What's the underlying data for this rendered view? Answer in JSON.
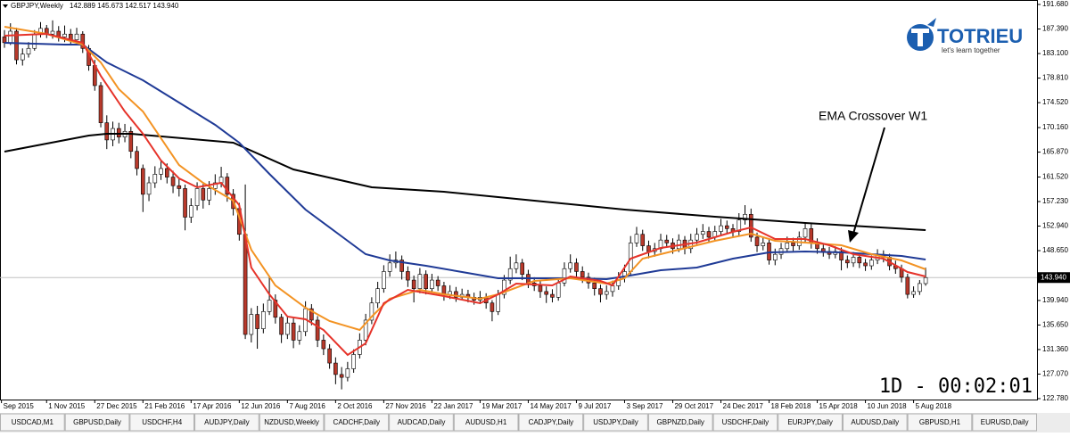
{
  "chart_data": {
    "type": "candlestick",
    "title": "GBPJPY,Weekly",
    "subtitle": "142.889 145.673 142.517 143.940",
    "up_color": "#ffffff",
    "down_color": "#b8392b",
    "wick_color": "#000000",
    "candles": [
      [
        186.0,
        187.2,
        184.1,
        185.0
      ],
      [
        185.0,
        188.4,
        184.6,
        187.0
      ],
      [
        187.0,
        187.6,
        181.2,
        182.0
      ],
      [
        182.0,
        184.0,
        181.0,
        183.0
      ],
      [
        183.0,
        185.1,
        182.4,
        184.0
      ],
      [
        184.0,
        187.2,
        183.6,
        186.5
      ],
      [
        186.5,
        188.6,
        185.9,
        187.5
      ],
      [
        187.5,
        188.1,
        185.8,
        186.5
      ],
      [
        186.5,
        188.9,
        185.7,
        187.0
      ],
      [
        187.0,
        187.9,
        185.2,
        186.0
      ],
      [
        186.0,
        188.0,
        185.1,
        186.5
      ],
      [
        186.5,
        187.4,
        184.6,
        185.5
      ],
      [
        185.5,
        187.6,
        184.9,
        186.5
      ],
      [
        186.5,
        187.0,
        183.2,
        184.0
      ],
      [
        184.0,
        184.6,
        180.1,
        181.0
      ],
      [
        181.0,
        182.0,
        176.6,
        177.5
      ],
      [
        177.5,
        178.1,
        170.2,
        171.0
      ],
      [
        171.0,
        172.3,
        166.4,
        168.0
      ],
      [
        168.0,
        171.2,
        166.9,
        170.0
      ],
      [
        170.0,
        171.0,
        167.4,
        168.5
      ],
      [
        168.5,
        170.8,
        167.6,
        169.5
      ],
      [
        169.5,
        170.3,
        164.8,
        166.0
      ],
      [
        166.0,
        166.9,
        161.8,
        163.0
      ],
      [
        163.0,
        163.7,
        155.4,
        158.5
      ],
      [
        158.5,
        161.6,
        157.3,
        160.5
      ],
      [
        160.5,
        163.4,
        159.6,
        162.0
      ],
      [
        162.0,
        164.5,
        161.0,
        163.0
      ],
      [
        163.0,
        163.9,
        160.4,
        161.5
      ],
      [
        161.5,
        162.6,
        158.7,
        160.0
      ],
      [
        160.0,
        161.2,
        158.1,
        159.5
      ],
      [
        159.5,
        160.2,
        152.2,
        154.5
      ],
      [
        154.5,
        157.8,
        153.5,
        156.5
      ],
      [
        156.5,
        160.6,
        155.7,
        159.5
      ],
      [
        159.5,
        160.3,
        156.0,
        157.5
      ],
      [
        157.5,
        160.8,
        156.6,
        159.5
      ],
      [
        159.5,
        162.0,
        158.4,
        160.5
      ],
      [
        160.5,
        163.3,
        159.7,
        161.5
      ],
      [
        161.5,
        162.2,
        157.2,
        158.5
      ],
      [
        158.5,
        159.4,
        154.8,
        156.0
      ],
      [
        156.0,
        157.0,
        150.4,
        151.5
      ],
      [
        151.5,
        160.2,
        133.2,
        134.0
      ],
      [
        134.0,
        138.6,
        132.6,
        137.5
      ],
      [
        137.5,
        139.0,
        131.5,
        135.0
      ],
      [
        135.0,
        139.4,
        134.2,
        138.0
      ],
      [
        138.0,
        144.3,
        137.4,
        140.0
      ],
      [
        140.0,
        141.0,
        135.9,
        137.0
      ],
      [
        137.0,
        137.6,
        132.5,
        134.0
      ],
      [
        134.0,
        137.1,
        133.2,
        136.0
      ],
      [
        136.0,
        136.8,
        131.6,
        133.0
      ],
      [
        133.0,
        135.6,
        132.2,
        134.5
      ],
      [
        134.5,
        139.8,
        133.7,
        138.5
      ],
      [
        138.5,
        139.3,
        135.6,
        136.5
      ],
      [
        136.5,
        137.2,
        131.8,
        133.0
      ],
      [
        133.0,
        134.0,
        130.4,
        131.5
      ],
      [
        131.5,
        132.3,
        128.0,
        129.0
      ],
      [
        129.0,
        130.0,
        125.3,
        127.0
      ],
      [
        127.0,
        128.3,
        124.4,
        126.5
      ],
      [
        126.5,
        129.2,
        125.8,
        128.0
      ],
      [
        128.0,
        131.4,
        127.3,
        130.5
      ],
      [
        130.5,
        134.2,
        129.8,
        133.0
      ],
      [
        133.0,
        137.6,
        132.1,
        136.5
      ],
      [
        136.5,
        140.5,
        135.8,
        139.5
      ],
      [
        139.5,
        143.2,
        138.6,
        142.0
      ],
      [
        142.0,
        146.1,
        141.3,
        145.0
      ],
      [
        145.0,
        148.0,
        144.1,
        146.5
      ],
      [
        146.5,
        148.5,
        145.6,
        147.0
      ],
      [
        147.0,
        147.8,
        143.6,
        145.0
      ],
      [
        145.0,
        145.9,
        142.3,
        143.5
      ],
      [
        143.5,
        144.3,
        139.6,
        142.0
      ],
      [
        142.0,
        145.6,
        141.2,
        144.5
      ],
      [
        144.5,
        145.2,
        141.0,
        142.0
      ],
      [
        142.0,
        144.6,
        141.4,
        143.5
      ],
      [
        143.5,
        144.2,
        141.6,
        142.5
      ],
      [
        142.5,
        143.2,
        139.9,
        141.0
      ],
      [
        141.0,
        142.6,
        140.2,
        141.5
      ],
      [
        141.5,
        142.3,
        139.7,
        140.5
      ],
      [
        140.5,
        142.0,
        140.0,
        141.0
      ],
      [
        141.0,
        141.8,
        139.6,
        140.5
      ],
      [
        140.5,
        141.3,
        139.2,
        140.0
      ],
      [
        140.0,
        141.6,
        139.3,
        140.5
      ],
      [
        140.5,
        141.2,
        138.5,
        139.5
      ],
      [
        139.5,
        140.0,
        136.3,
        138.0
      ],
      [
        138.0,
        141.8,
        137.4,
        141.0
      ],
      [
        141.0,
        144.4,
        140.3,
        143.5
      ],
      [
        143.5,
        147.6,
        142.8,
        145.5
      ],
      [
        145.5,
        148.0,
        144.7,
        146.5
      ],
      [
        146.5,
        147.2,
        143.5,
        144.5
      ],
      [
        144.5,
        145.3,
        142.1,
        143.0
      ],
      [
        143.0,
        144.0,
        141.6,
        142.5
      ],
      [
        142.5,
        143.3,
        140.4,
        141.5
      ],
      [
        141.5,
        142.4,
        139.5,
        141.0
      ],
      [
        141.0,
        141.9,
        139.6,
        140.5
      ],
      [
        140.5,
        143.9,
        139.9,
        143.0
      ],
      [
        143.0,
        146.6,
        142.4,
        145.5
      ],
      [
        145.5,
        148.0,
        144.8,
        146.5
      ],
      [
        146.5,
        147.3,
        144.1,
        145.0
      ],
      [
        145.0,
        145.9,
        143.0,
        144.0
      ],
      [
        144.0,
        144.8,
        142.0,
        143.0
      ],
      [
        143.0,
        143.9,
        140.8,
        142.0
      ],
      [
        142.0,
        142.7,
        139.6,
        141.0
      ],
      [
        141.0,
        142.6,
        140.1,
        141.5
      ],
      [
        141.5,
        143.4,
        140.6,
        142.5
      ],
      [
        142.5,
        144.9,
        141.8,
        144.0
      ],
      [
        144.0,
        146.2,
        143.1,
        145.0
      ],
      [
        145.0,
        151.2,
        144.2,
        150.0
      ],
      [
        150.0,
        152.8,
        149.3,
        151.5
      ],
      [
        151.5,
        152.3,
        148.6,
        149.5
      ],
      [
        149.5,
        150.4,
        147.3,
        148.5
      ],
      [
        148.5,
        150.0,
        147.6,
        149.0
      ],
      [
        149.0,
        151.6,
        148.3,
        150.5
      ],
      [
        150.5,
        151.4,
        149.2,
        150.0
      ],
      [
        150.0,
        150.8,
        148.1,
        149.0
      ],
      [
        149.0,
        151.5,
        148.4,
        150.5
      ],
      [
        150.5,
        151.2,
        148.0,
        149.0
      ],
      [
        149.0,
        151.6,
        148.2,
        150.5
      ],
      [
        150.5,
        152.6,
        149.8,
        151.5
      ],
      [
        151.5,
        153.3,
        150.7,
        152.0
      ],
      [
        152.0,
        152.8,
        150.2,
        151.0
      ],
      [
        151.0,
        153.0,
        150.3,
        152.0
      ],
      [
        152.0,
        154.2,
        151.2,
        153.0
      ],
      [
        153.0,
        153.9,
        151.6,
        152.5
      ],
      [
        152.5,
        153.3,
        150.9,
        152.0
      ],
      [
        152.0,
        155.2,
        151.3,
        154.0
      ],
      [
        154.0,
        156.6,
        153.2,
        155.0
      ],
      [
        155.0,
        156.0,
        150.2,
        151.0
      ],
      [
        151.0,
        151.8,
        148.4,
        149.5
      ],
      [
        149.5,
        151.0,
        148.7,
        150.0
      ],
      [
        150.0,
        150.6,
        146.2,
        147.0
      ],
      [
        147.0,
        149.0,
        146.1,
        148.0
      ],
      [
        148.0,
        150.0,
        147.2,
        149.0
      ],
      [
        149.0,
        151.1,
        148.3,
        150.0
      ],
      [
        150.0,
        150.9,
        148.6,
        149.5
      ],
      [
        149.5,
        152.0,
        148.8,
        151.0
      ],
      [
        151.0,
        153.6,
        150.2,
        152.5
      ],
      [
        152.5,
        153.3,
        149.0,
        150.0
      ],
      [
        150.0,
        150.8,
        148.1,
        149.0
      ],
      [
        149.0,
        149.9,
        147.6,
        148.5
      ],
      [
        148.5,
        149.3,
        147.2,
        148.0
      ],
      [
        148.0,
        149.4,
        147.3,
        148.5
      ],
      [
        148.5,
        149.2,
        145.2,
        147.0
      ],
      [
        147.0,
        147.8,
        145.6,
        146.5
      ],
      [
        146.5,
        148.4,
        145.8,
        147.5
      ],
      [
        147.5,
        148.2,
        145.6,
        146.5
      ],
      [
        146.5,
        147.2,
        145.1,
        146.0
      ],
      [
        146.0,
        147.8,
        145.3,
        147.0
      ],
      [
        147.0,
        148.9,
        146.3,
        148.0
      ],
      [
        148.0,
        148.7,
        146.6,
        147.5
      ],
      [
        147.5,
        148.1,
        145.2,
        146.0
      ],
      [
        146.0,
        146.9,
        144.6,
        145.5
      ],
      [
        145.5,
        146.2,
        143.1,
        144.0
      ],
      [
        144.0,
        144.6,
        140.3,
        141.0
      ],
      [
        141.0,
        142.4,
        140.4,
        141.5
      ],
      [
        141.5,
        143.5,
        140.9,
        142.9
      ],
      [
        142.889,
        145.673,
        142.517,
        143.94
      ]
    ],
    "lines": [
      {
        "color": "#000000",
        "x": [
          0,
          14,
          17,
          21,
          38,
          48,
          61,
          73,
          88,
          103,
          118,
          133,
          153
        ],
        "values": [
          165.96,
          168.77,
          169.08,
          169.08,
          167.52,
          162.84,
          159.72,
          158.94,
          157.39,
          155.83,
          154.58,
          153.49,
          152.24
        ]
      },
      {
        "color": "#1f3a96",
        "x": [
          0,
          10,
          13,
          17,
          23,
          29,
          35,
          39,
          44,
          50,
          56,
          60,
          64,
          70,
          76,
          82,
          88,
          94,
          100,
          103,
          109,
          115,
          121,
          127,
          133,
          139,
          144,
          149,
          153
        ],
        "values": [
          184.98,
          184.67,
          184.67,
          181.55,
          178.43,
          174.53,
          170.64,
          167.52,
          162.06,
          155.83,
          151.15,
          148.03,
          146.94,
          146.01,
          144.91,
          143.82,
          143.82,
          143.82,
          143.67,
          144.14,
          145.23,
          145.69,
          147.25,
          148.34,
          148.5,
          148.34,
          148.03,
          147.72,
          147.1
        ]
      },
      {
        "color": "#f39323",
        "x": [
          0,
          7,
          13,
          16,
          19,
          23,
          29,
          33,
          38,
          41,
          45,
          50,
          54,
          59,
          61,
          64,
          69,
          73,
          79,
          82,
          88,
          94,
          100,
          103,
          106,
          112,
          118,
          124,
          128,
          133,
          139,
          144,
          149,
          153
        ],
        "values": [
          187.78,
          186.54,
          184.67,
          181.55,
          176.87,
          172.97,
          163.62,
          160.5,
          157.39,
          148.81,
          142.58,
          138.68,
          136.34,
          134.78,
          137.12,
          140.24,
          141.8,
          141.02,
          140.24,
          141.02,
          143.36,
          143.82,
          142.89,
          143.82,
          147.25,
          148.81,
          150.37,
          151.62,
          150.37,
          150.06,
          149.59,
          148.03,
          146.94,
          145.38
        ]
      },
      {
        "color": "#e6332a",
        "x": [
          0,
          7,
          13,
          16,
          20,
          23,
          26,
          29,
          32,
          36,
          39,
          41,
          44,
          47,
          50,
          53,
          57,
          60,
          63,
          67,
          73,
          79,
          82,
          85,
          91,
          94,
          99,
          101,
          104,
          109,
          115,
          121,
          124,
          128,
          133,
          137,
          141,
          146,
          150,
          153
        ],
        "values": [
          186.22,
          186.54,
          184.98,
          179.21,
          172.97,
          169.08,
          164.4,
          161.28,
          159.72,
          160.5,
          156.61,
          145.69,
          141.02,
          137.12,
          136.65,
          134.78,
          130.42,
          132.44,
          139.46,
          141.8,
          140.71,
          139.46,
          141.02,
          142.89,
          142.58,
          144.14,
          143.36,
          142.58,
          147.25,
          149.12,
          150.06,
          151.93,
          152.71,
          150.68,
          150.68,
          149.59,
          148.03,
          147.25,
          144.91,
          144.14
        ]
      }
    ],
    "xlim": [
      -0.74,
      171.5
    ],
    "ylim": [
      122.62,
      192.46
    ],
    "yticks": [
      {
        "value": 191.68,
        "label": "191.680"
      },
      {
        "value": 187.39,
        "label": "187.390"
      },
      {
        "value": 183.1,
        "label": "183.100"
      },
      {
        "value": 178.81,
        "label": "178.810"
      },
      {
        "value": 174.52,
        "label": "174.520"
      },
      {
        "value": 170.16,
        "label": "170.160"
      },
      {
        "value": 165.87,
        "label": "165.870"
      },
      {
        "value": 161.52,
        "label": "161.520"
      },
      {
        "value": 157.23,
        "label": "157.230"
      },
      {
        "value": 152.94,
        "label": "152.940"
      },
      {
        "value": 148.65,
        "label": "148.650"
      },
      {
        "value": 139.94,
        "label": "139.940"
      },
      {
        "value": 135.65,
        "label": "135.650"
      },
      {
        "value": 131.36,
        "label": "131.360"
      },
      {
        "value": 127.07,
        "label": "127.070"
      },
      {
        "value": 122.78,
        "label": "122.780"
      }
    ],
    "price_line": {
      "value": 143.94,
      "label": "143.940"
    },
    "xticks": [
      {
        "value": -0.5,
        "label": "Sep 2015"
      },
      {
        "value": 7,
        "label": "1 Nov 2015"
      },
      {
        "value": 15,
        "label": "27 Dec 2015"
      },
      {
        "value": 23,
        "label": "21 Feb 2016"
      },
      {
        "value": 31,
        "label": "17 Apr 2016"
      },
      {
        "value": 39,
        "label": "12 Jun 2016"
      },
      {
        "value": 47,
        "label": "7 Aug 2016"
      },
      {
        "value": 55,
        "label": "2 Oct 2016"
      },
      {
        "value": 63,
        "label": "27 Nov 2016"
      },
      {
        "value": 71,
        "label": "22 Jan 2017"
      },
      {
        "value": 79,
        "label": "19 Mar 2017"
      },
      {
        "value": 87,
        "label": "14 May 2017"
      },
      {
        "value": 95,
        "label": "9 Jul 2017"
      },
      {
        "value": 103,
        "label": "3 Sep 2017"
      },
      {
        "value": 111,
        "label": "29 Oct 2017"
      },
      {
        "value": 119,
        "label": "24 Dec 2017"
      },
      {
        "value": 127,
        "label": "18 Feb 2018"
      },
      {
        "value": 135,
        "label": "15 Apr 2018"
      },
      {
        "value": 143,
        "label": "10 Jun 2018"
      },
      {
        "value": 151,
        "label": "5 Aug 2018"
      }
    ],
    "annotation": "EMA Crossover W1",
    "timer": "1D - 00:02:01",
    "grid": false
  },
  "logo": {
    "name": "TOTRIEU",
    "tagline": "let's learn together"
  },
  "tabs": [
    "USDCAD,M1",
    "GBPUSD,Daily",
    "USDCHF,H4",
    "AUDJPY,Daily",
    "NZDUSD,Weekly",
    "CADCHF,Daily",
    "AUDCAD,Daily",
    "AUDUSD,H1",
    "CADJPY,Daily",
    "USDJPY,Daily",
    "GBPNZD,Daily",
    "USDCHF,Daily",
    "EURJPY,Daily",
    "AUDUSD,Daily",
    "GBPUSD,H1",
    "EURUSD,Daily"
  ]
}
